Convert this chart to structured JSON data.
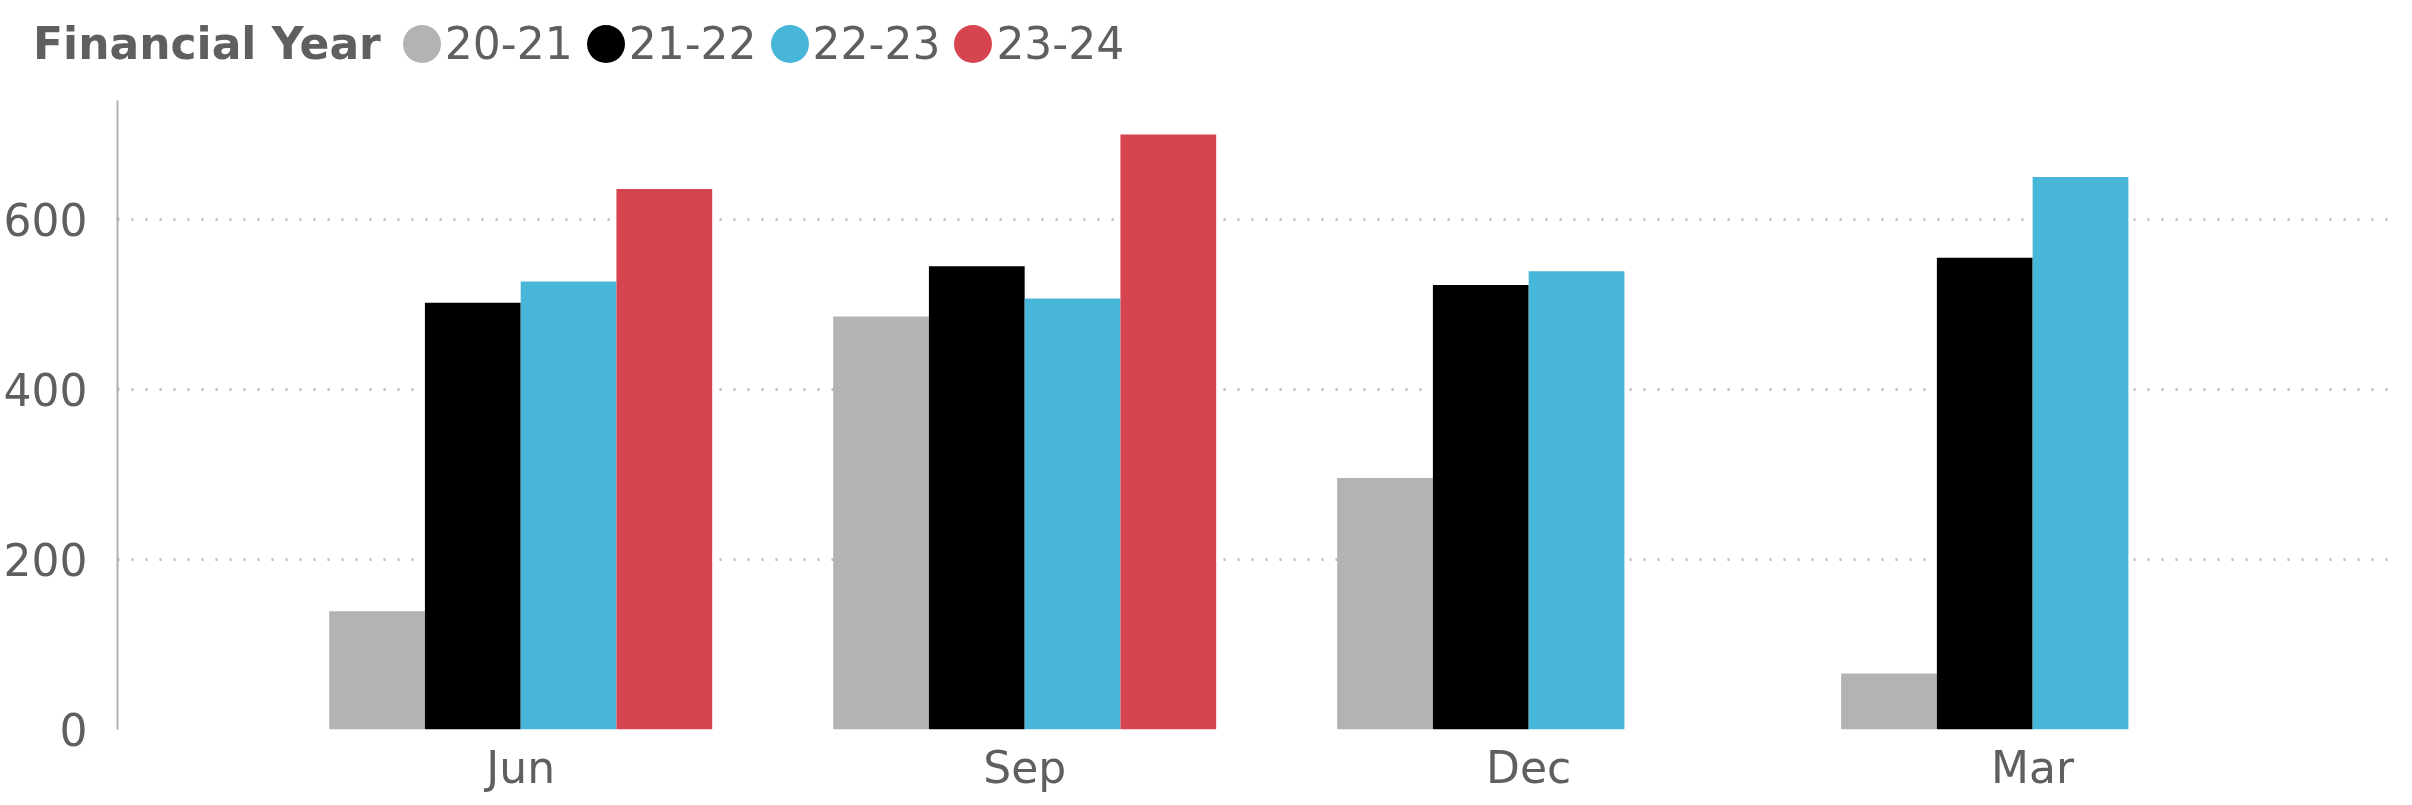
{
  "chart_data": {
    "type": "bar",
    "legend_title": "Financial Year",
    "categories": [
      "Jun",
      "Sep",
      "Dec",
      "Mar"
    ],
    "series": [
      {
        "name": "20-21",
        "color": "#b3b3b3",
        "values": [
          139,
          486,
          296,
          66
        ]
      },
      {
        "name": "21-22",
        "color": "#000000",
        "values": [
          502,
          545,
          523,
          555
        ]
      },
      {
        "name": "22-23",
        "color": "#48b6d9",
        "values": [
          527,
          507,
          539,
          650
        ]
      },
      {
        "name": "23-24",
        "color": "#d6454f",
        "values": [
          636,
          700,
          null,
          null
        ]
      }
    ],
    "ylim": [
      0,
      740
    ],
    "yticks": [
      0,
      200,
      400,
      600
    ],
    "grid": "y",
    "legend": "top left",
    "marker": "circle"
  }
}
